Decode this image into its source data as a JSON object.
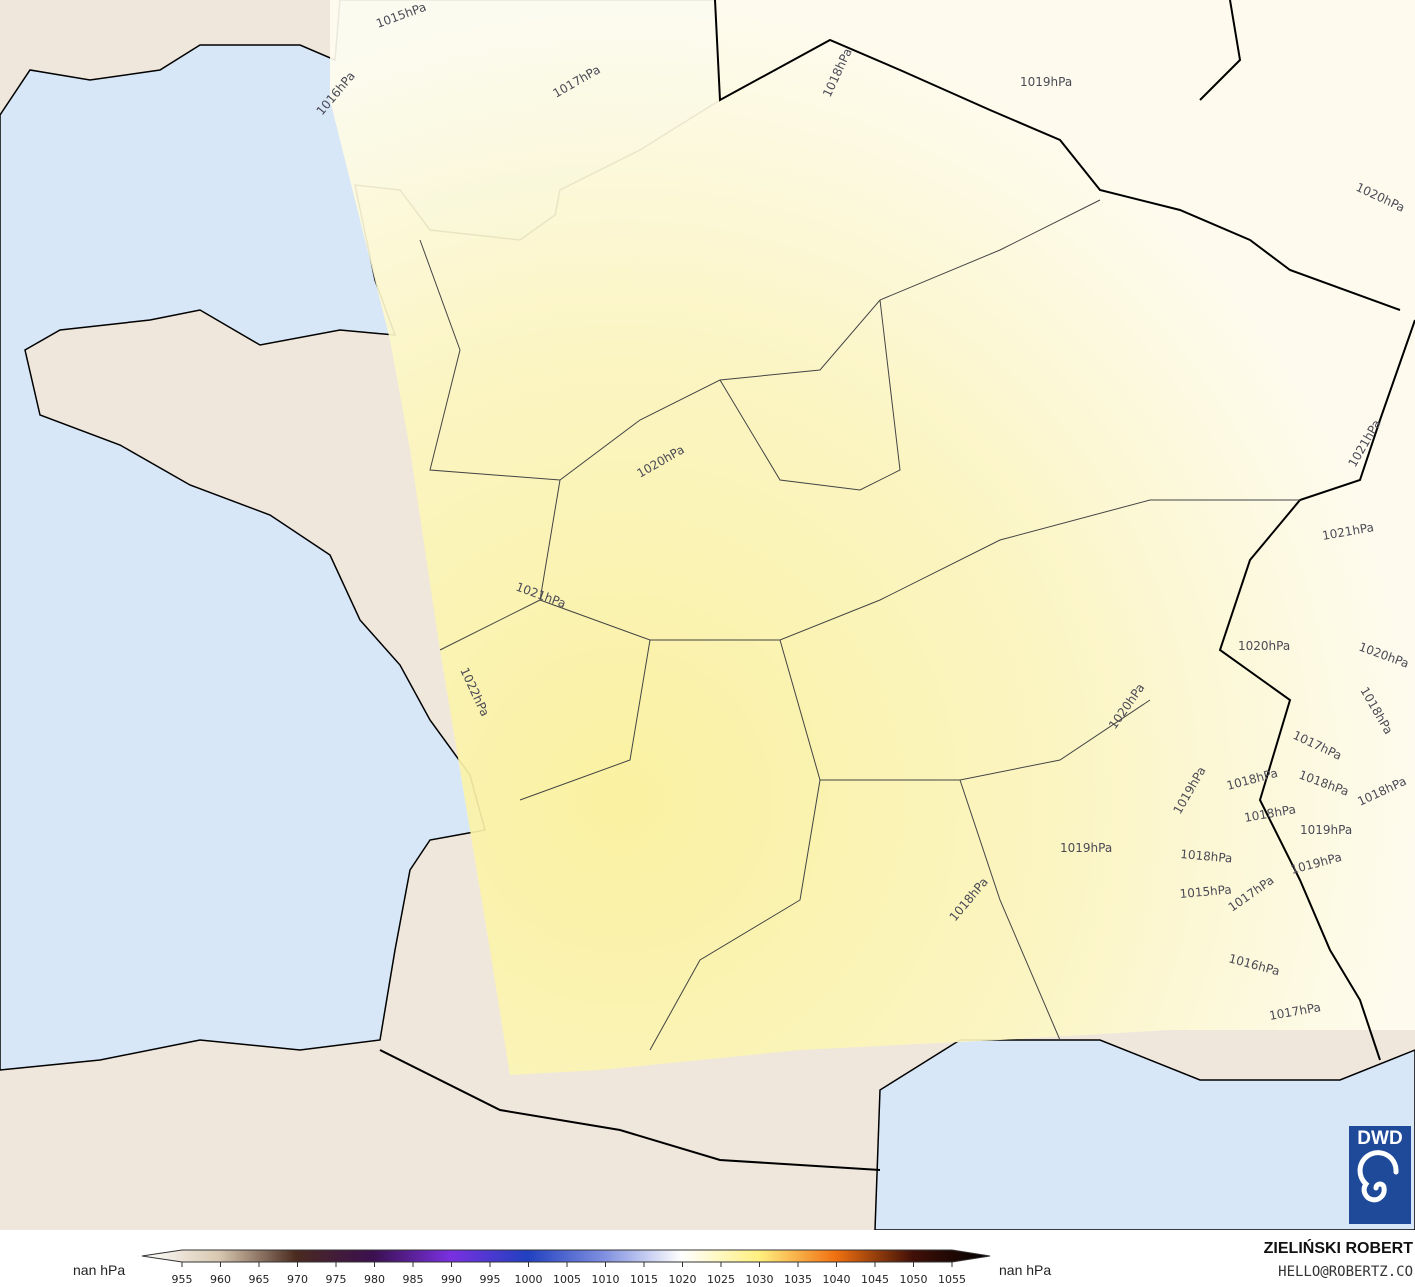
{
  "map": {
    "colors": {
      "sea": "#d7e7f7",
      "land": "#efe6dc",
      "pressure_high": "#fbf29c",
      "pressure_low": "#ffffff"
    },
    "isobar_labels": [
      "1015hPa",
      "1016hPa",
      "1017hPa",
      "1018hPa",
      "1019hPa",
      "1020hPa",
      "1020hPa",
      "1021hPa",
      "1021hPa",
      "1020hPa",
      "1021hPa",
      "1022hPa",
      "1020hPa",
      "1020hPa",
      "1017hPa",
      "1018hPa",
      "1018hPa",
      "1019hPa",
      "1018hPa",
      "1018hPa",
      "1019hPa",
      "1018hPa",
      "1019hPa",
      "1018hPa",
      "1019hPa",
      "1018hPa",
      "1015hPa",
      "1017hPa",
      "1016hPa",
      "1017hPa"
    ]
  },
  "legend": {
    "left_label": "nan hPa",
    "right_label": "nan hPa",
    "ticks": [
      "955",
      "960",
      "965",
      "970",
      "975",
      "980",
      "985",
      "990",
      "995",
      "1000",
      "1005",
      "1010",
      "1015",
      "1020",
      "1025",
      "1030",
      "1035",
      "1040",
      "1045",
      "1050",
      "1055"
    ],
    "colorscale": [
      "#ffffff",
      "#d8c8b0",
      "#4a2a20",
      "#3a1050",
      "#7a30e0",
      "#2040c0",
      "#8090e0",
      "#ffffff",
      "#fff080",
      "#f07010",
      "#401008",
      "#000000"
    ]
  },
  "credits": {
    "author": "ZIELIŃSKI ROBERT",
    "email": "HELLO@ROBERTZ.CO",
    "logo_text": "DWD"
  }
}
